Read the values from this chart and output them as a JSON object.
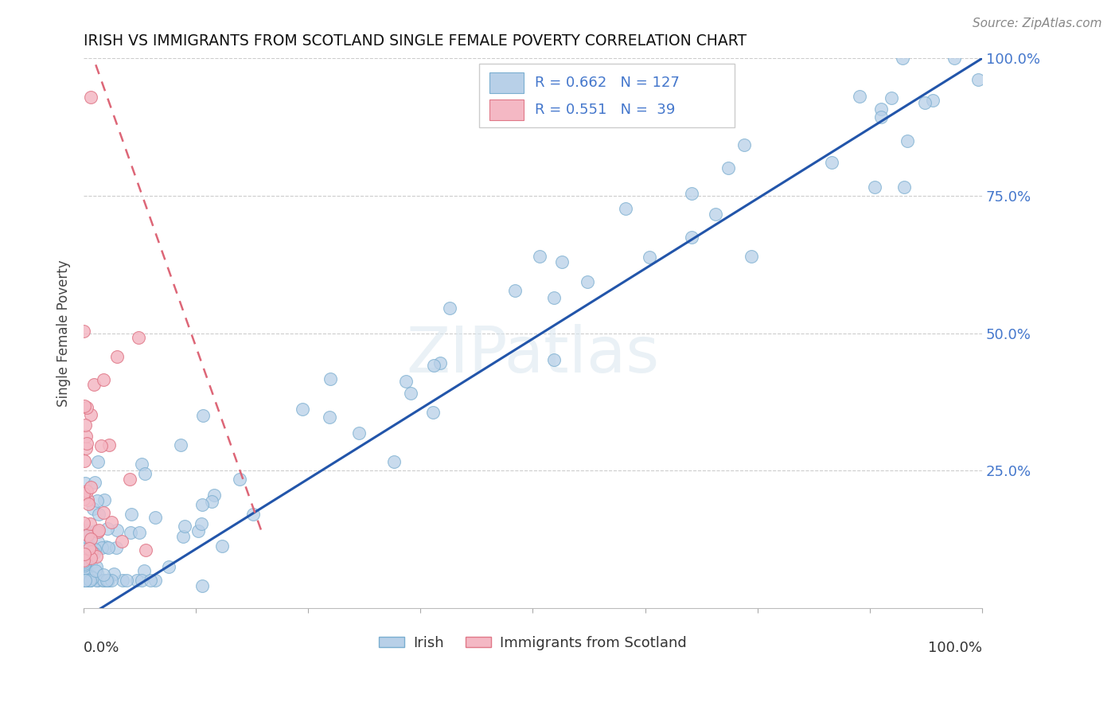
{
  "title": "IRISH VS IMMIGRANTS FROM SCOTLAND SINGLE FEMALE POVERTY CORRELATION CHART",
  "source": "Source: ZipAtlas.com",
  "ylabel": "Single Female Poverty",
  "blue_R": 0.662,
  "blue_N": 127,
  "pink_R": 0.551,
  "pink_N": 39,
  "blue_color": "#b8d0e8",
  "blue_edge": "#7aaed0",
  "pink_color": "#f4b8c4",
  "pink_edge": "#e07888",
  "trendline_blue": "#2255aa",
  "trendline_pink": "#dd6677",
  "watermark_color": "#dce8f0",
  "legend_label_blue": "Irish",
  "legend_label_pink": "Immigrants from Scotland",
  "right_tick_color": "#4477cc",
  "title_color": "#111111",
  "source_color": "#888888"
}
